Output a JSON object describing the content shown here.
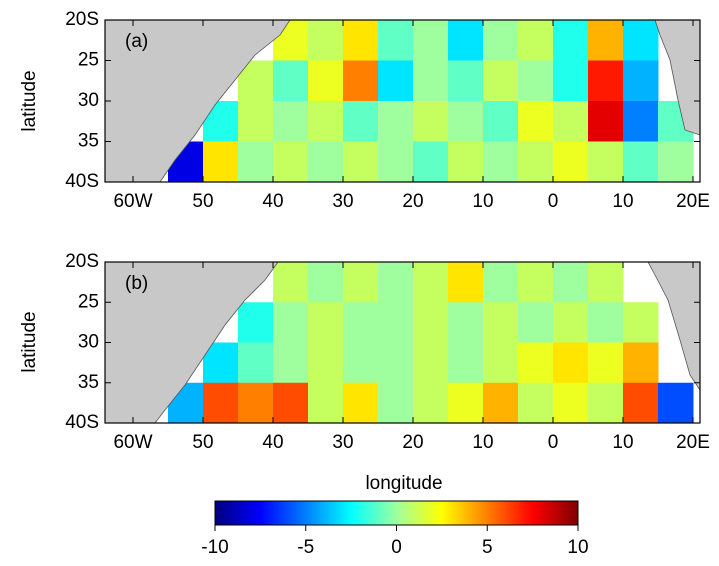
{
  "chart_data": [
    {
      "type": "heatmap",
      "label": "(a)",
      "ylabel": "latitude",
      "x": [
        -62.5,
        -57.5,
        -52.5,
        -47.5,
        -42.5,
        -37.5,
        -32.5,
        -27.5,
        -22.5,
        -17.5,
        -12.5,
        -7.5,
        -2.5,
        2.5,
        7.5,
        12.5,
        17.5
      ],
      "y": [
        -22.5,
        -27.5,
        -32.5,
        -37.5
      ],
      "z": [
        [
          null,
          null,
          null,
          null,
          null,
          2,
          1,
          3,
          -1,
          0,
          -3,
          0,
          1,
          -2,
          4,
          -3,
          null
        ],
        [
          null,
          null,
          null,
          null,
          1,
          -1,
          2,
          5,
          -3,
          0,
          -1,
          1,
          0,
          -2,
          7,
          -4,
          null
        ],
        [
          null,
          null,
          null,
          -2,
          1,
          0,
          1,
          -1,
          0,
          1,
          0,
          -1,
          2,
          1,
          8,
          -5,
          -1
        ],
        [
          null,
          null,
          -8,
          3,
          0,
          1,
          0,
          1,
          0,
          -1,
          1,
          0,
          1,
          2,
          1,
          -1,
          0
        ]
      ],
      "xlim": [
        -64,
        21
      ],
      "ylim": [
        -40,
        -20
      ],
      "xticks": [
        {
          "value": -60,
          "label": "60W"
        },
        {
          "value": -50,
          "label": "50"
        },
        {
          "value": -40,
          "label": "40"
        },
        {
          "value": -30,
          "label": "30"
        },
        {
          "value": -20,
          "label": "20"
        },
        {
          "value": -10,
          "label": "10"
        },
        0,
        10,
        {
          "value": 20,
          "label": "20E"
        }
      ],
      "yticks": [
        {
          "value": -20,
          "label": "20S"
        },
        {
          "value": -25,
          "label": "25"
        },
        {
          "value": -30,
          "label": "30"
        },
        {
          "value": -35,
          "label": "35"
        },
        {
          "value": -40,
          "label": "40S"
        }
      ]
    },
    {
      "type": "heatmap",
      "label": "(b)",
      "ylabel": "latitude",
      "xlabel": "longitude",
      "x": [
        -62.5,
        -57.5,
        -52.5,
        -47.5,
        -42.5,
        -37.5,
        -32.5,
        -27.5,
        -22.5,
        -17.5,
        -12.5,
        -7.5,
        -2.5,
        2.5,
        7.5,
        12.5,
        17.5
      ],
      "y": [
        -22.5,
        -27.5,
        -32.5,
        -37.5
      ],
      "z": [
        [
          null,
          null,
          null,
          null,
          null,
          1,
          0,
          1,
          0,
          1,
          3,
          0,
          1,
          0,
          1,
          null,
          null
        ],
        [
          null,
          null,
          null,
          null,
          -2,
          0,
          1,
          0,
          0,
          1,
          0,
          1,
          0,
          1,
          0,
          1,
          null
        ],
        [
          null,
          null,
          null,
          -3,
          -1,
          0,
          1,
          0,
          0,
          1,
          0,
          1,
          2,
          3,
          2,
          4,
          null
        ],
        [
          null,
          null,
          -4,
          6,
          5,
          6,
          1,
          3,
          0,
          1,
          2,
          4,
          1,
          2,
          1,
          6,
          -6
        ]
      ],
      "xlim": [
        -64,
        21
      ],
      "ylim": [
        -40,
        -20
      ],
      "xticks": [
        {
          "value": -60,
          "label": "60W"
        },
        {
          "value": -50,
          "label": "50"
        },
        {
          "value": -40,
          "label": "40"
        },
        {
          "value": -30,
          "label": "30"
        },
        {
          "value": -20,
          "label": "20"
        },
        {
          "value": -10,
          "label": "10"
        },
        0,
        10,
        {
          "value": 20,
          "label": "20E"
        }
      ],
      "yticks": [
        {
          "value": -20,
          "label": "20S"
        },
        {
          "value": -25,
          "label": "25"
        },
        {
          "value": -30,
          "label": "30"
        },
        {
          "value": -35,
          "label": "35"
        },
        {
          "value": -40,
          "label": "40S"
        }
      ],
      "colorbar": {
        "lim": [
          -10,
          10
        ],
        "ticks": [
          -10,
          -5,
          0,
          5,
          10
        ],
        "colors": [
          "#00007f",
          "#0000ff",
          "#007fff",
          "#00ffff",
          "#9fff9f",
          "#ffff00",
          "#ff7f00",
          "#ff0000",
          "#7f0000"
        ]
      }
    }
  ]
}
